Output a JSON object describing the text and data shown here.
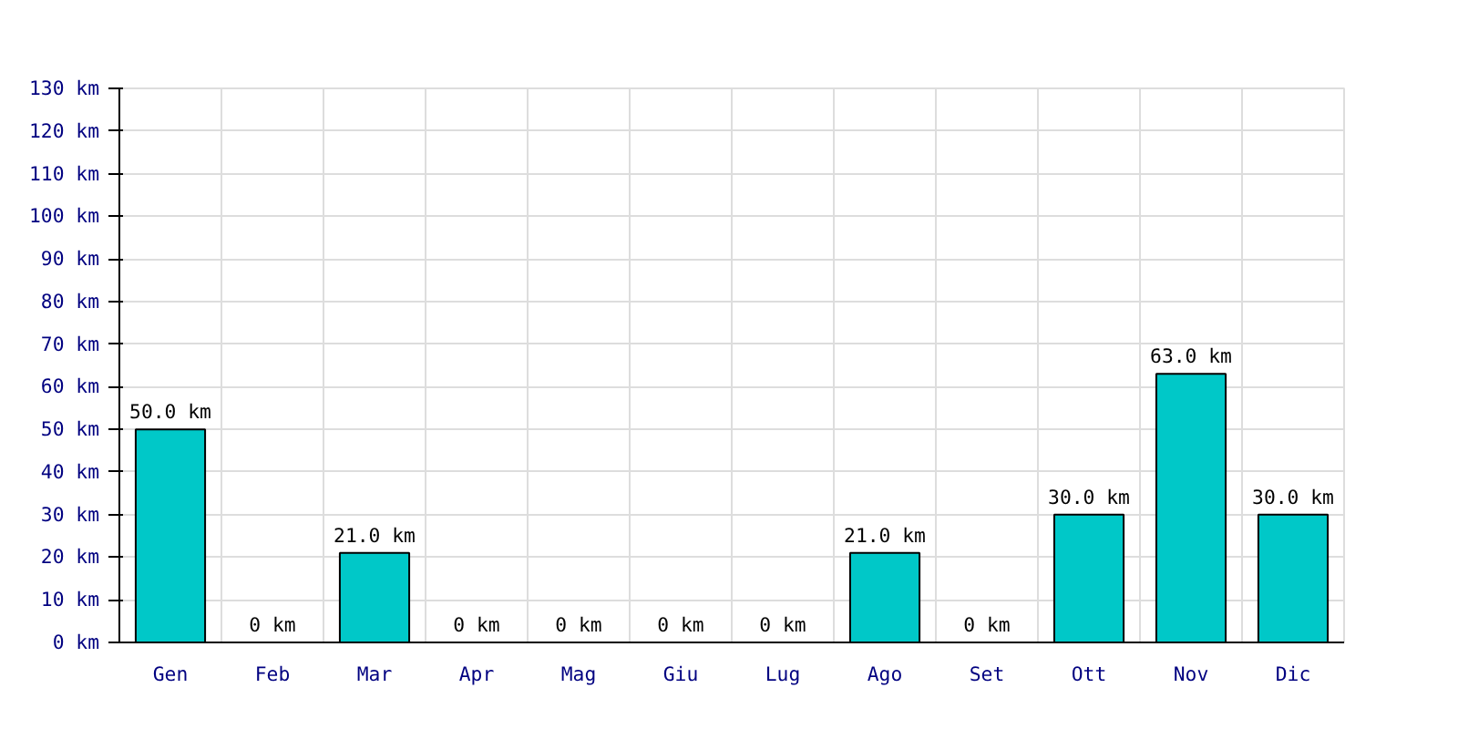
{
  "chart_data": {
    "type": "bar",
    "categories": [
      "Gen",
      "Feb",
      "Mar",
      "Apr",
      "Mag",
      "Giu",
      "Lug",
      "Ago",
      "Set",
      "Ott",
      "Nov",
      "Dic"
    ],
    "values": [
      50.0,
      0,
      21.0,
      0,
      0,
      0,
      0,
      21.0,
      0,
      30.0,
      63.0,
      30.0
    ],
    "value_labels": [
      "50.0 km",
      "0 km",
      "21.0 km",
      "0 km",
      "0 km",
      "0 km",
      "0 km",
      "21.0 km",
      "0 km",
      "30.0 km",
      "63.0 km",
      "30.0 km"
    ],
    "color": "#00c8c8",
    "ylim": [
      0,
      130
    ],
    "yticks": [
      {
        "value": 0,
        "label": "0 km"
      },
      {
        "value": 10,
        "label": "10 km"
      },
      {
        "value": 20,
        "label": "20 km"
      },
      {
        "value": 30,
        "label": "30 km"
      },
      {
        "value": 40,
        "label": "40 km"
      },
      {
        "value": 50,
        "label": "50 km"
      },
      {
        "value": 60,
        "label": "60 km"
      },
      {
        "value": 70,
        "label": "70 km"
      },
      {
        "value": 80,
        "label": "80 km"
      },
      {
        "value": 90,
        "label": "90 km"
      },
      {
        "value": 100,
        "label": "100 km"
      },
      {
        "value": 110,
        "label": "110 km"
      },
      {
        "value": 120,
        "label": "120 km"
      },
      {
        "value": 130,
        "label": "130 km"
      }
    ],
    "grid": true
  }
}
